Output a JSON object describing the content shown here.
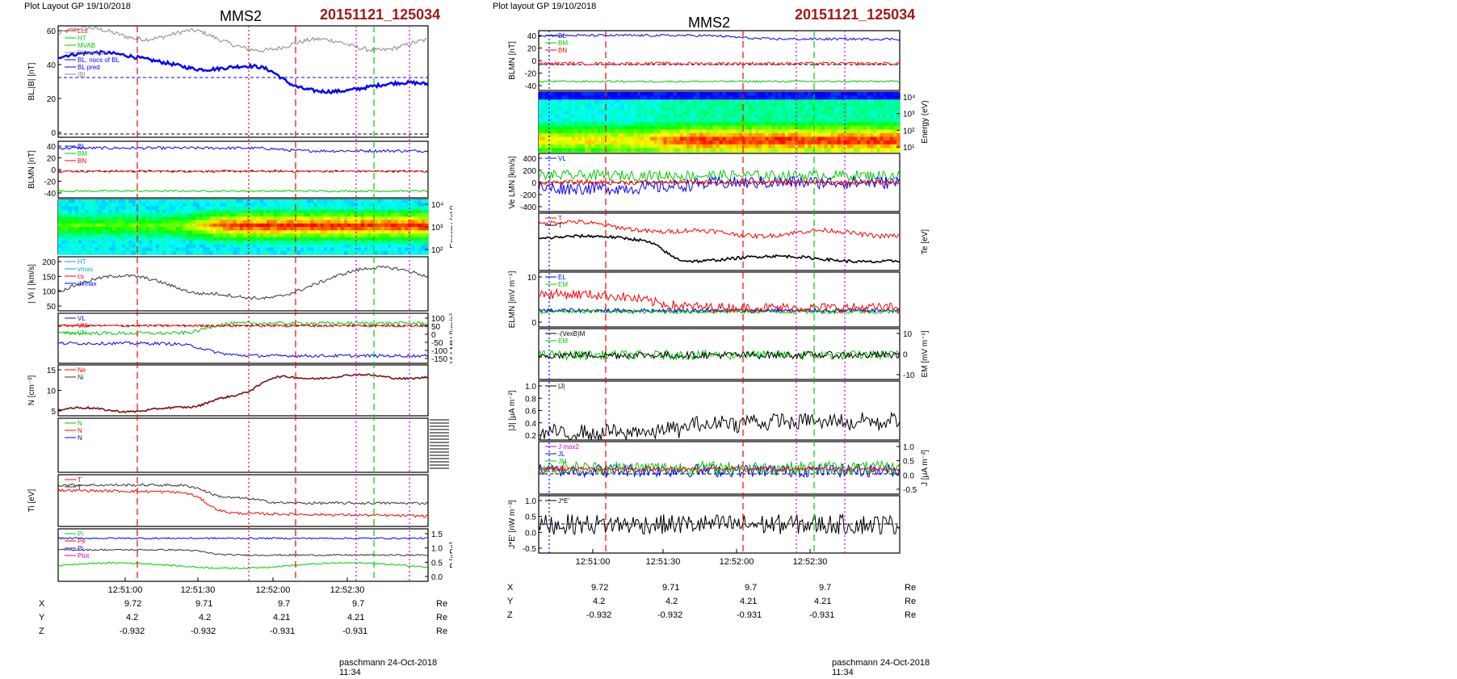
{
  "left": {
    "header": "Plot Layout GP 19/10/2018",
    "spacecraft": "MMS2",
    "event_id": "20151121_125034",
    "footer": "paschmann 24-Oct-2018 11:34"
  },
  "right": {
    "header": "Plot layout GP 19/10/2018",
    "spacecraft": "MMS2",
    "event_id": "20151121_125034",
    "footer": "paschmann 24-Oct-2018 11:34"
  },
  "colors": {
    "title_red": "#a01818",
    "blue": "#0000ff",
    "red": "#ff0000",
    "green": "#00cc00",
    "black": "#000000",
    "magenta": "#cc00cc",
    "cyan": "#00aacc",
    "gray": "#888888"
  },
  "orbit": {
    "left": {
      "rows": [
        {
          "label": "X",
          "values": [
            "9.72",
            "9.71",
            "9.7",
            "9.7"
          ],
          "unit": "Re"
        },
        {
          "label": "Y",
          "values": [
            "4.2",
            "4.2",
            "4.21",
            "4.21"
          ],
          "unit": "Re"
        },
        {
          "label": "Z",
          "values": [
            "-0.932",
            "-0.932",
            "-0.931",
            "-0.931"
          ],
          "unit": "Re"
        }
      ]
    },
    "right": {
      "rows": [
        {
          "label": "X",
          "values": [
            "9.72",
            "9.71",
            "9.7",
            "9.7"
          ],
          "unit": "Re"
        },
        {
          "label": "Y",
          "values": [
            "4.2",
            "4.2",
            "4.21",
            "4.21"
          ],
          "unit": "Re"
        },
        {
          "label": "Z",
          "values": [
            "-0.932",
            "-0.932",
            "-0.931",
            "-0.931"
          ],
          "unit": "Re"
        }
      ]
    }
  },
  "chart_data": [
    {
      "type": "line",
      "figure": "left",
      "x_ticks": [
        "12:51:00",
        "12:51:30",
        "12:52:00",
        "12:52:30"
      ],
      "event_markers": [
        {
          "color": "red",
          "style": "dashed"
        },
        {
          "color": "red",
          "style": "dotted"
        },
        {
          "color": "red",
          "style": "dashed"
        },
        {
          "color": "magenta",
          "style": "dotted"
        },
        {
          "color": "green",
          "style": "dashed"
        },
        {
          "color": "magenta",
          "style": "dotted"
        }
      ],
      "panels": [
        {
          "id": "B",
          "ylabel": "BL,|B| [nT]",
          "yticks": [
            "60",
            "40",
            "20",
            "0"
          ],
          "legend": [
            "Lcs",
            "HT",
            "MVAB",
            "BLminmax",
            "BL, nocs of BL",
            "BL pred",
            "|B|"
          ]
        },
        {
          "id": "BLMN",
          "ylabel": "BLMN [nT]",
          "yticks": [
            "40",
            "20",
            "0",
            "-20",
            "-40"
          ],
          "legend": [
            "BL",
            "BM",
            "BN"
          ]
        },
        {
          "id": "spec",
          "ylabel": "Energy (eV)",
          "yticks": [
            "10⁴",
            "10³",
            "10²"
          ],
          "type": "heatmap"
        },
        {
          "id": "Vi",
          "ylabel": "| Vi | [km/s]",
          "yticks": [
            "200",
            "150",
            "100",
            "50"
          ],
          "legend": [
            "HT",
            "vmax",
            "cs",
            "dvmax"
          ]
        },
        {
          "id": "ViLMN",
          "ylabel": "Vi LMN [km/s]",
          "yticks": [
            "100",
            "50",
            "0",
            "-50",
            "-100",
            "-150"
          ],
          "legend": [
            "VL",
            "VM",
            "VN"
          ]
        },
        {
          "id": "N",
          "ylabel": "N [cm⁻³]",
          "yticks": [
            "15",
            "10",
            "5"
          ],
          "legend": [
            "Ne",
            "Ni"
          ]
        },
        {
          "id": "Nz",
          "ylabel": "",
          "legend": [
            "N",
            "N",
            "N"
          ]
        },
        {
          "id": "Ti",
          "ylabel": "Ti [eV]",
          "yticks": [],
          "legend": [
            "T",
            "T"
          ]
        },
        {
          "id": "P",
          "ylabel": "P [nPa]",
          "yticks": [
            "1.5",
            "1.0",
            "0.5",
            "0.0"
          ],
          "legend": [
            "Pi",
            "Pe",
            "Pi",
            "Ptot"
          ]
        }
      ]
    },
    {
      "type": "line",
      "figure": "right",
      "x_ticks": [
        "12:51:00",
        "12:51:30",
        "12:52:00",
        "12:52:30"
      ],
      "panels": [
        {
          "id": "BLMN",
          "ylabel": "BLMN [nT]",
          "yticks": [
            "40",
            "20",
            "0",
            "-20",
            "-40"
          ],
          "legend": [
            "BL",
            "BM",
            "BN"
          ]
        },
        {
          "id": "spec",
          "ylabel": "Energy (eV)",
          "yticks": [
            "10⁴",
            "10³",
            "10²",
            "10¹"
          ],
          "type": "heatmap"
        },
        {
          "id": "Ve",
          "ylabel": "Ve LMN [km/s]",
          "yticks": [
            "400",
            "200",
            "0",
            "-200",
            "-400"
          ],
          "legend": [
            "VL"
          ]
        },
        {
          "id": "Te",
          "ylabel": "Te [eV]",
          "yticks": [],
          "legend": [
            "T",
            "T"
          ]
        },
        {
          "id": "E",
          "ylabel": "ELMN [mV m⁻¹]",
          "yticks": [
            "10",
            "0"
          ],
          "legend": [
            "EL",
            "EM"
          ]
        },
        {
          "id": "EM",
          "ylabel": "EM [mV m⁻¹]",
          "yticks": [
            "10",
            "0",
            "-10"
          ],
          "legend": [
            "-(VexB)M",
            "EM"
          ]
        },
        {
          "id": "J",
          "ylabel": "|J| [μA m⁻²]",
          "yticks": [
            "1.0",
            "0.8",
            "0.6",
            "0.4",
            "0.2"
          ],
          "legend": [
            "|J|"
          ]
        },
        {
          "id": "JLMN",
          "ylabel": "J [μA m⁻²]",
          "yticks": [
            "1.0",
            "0.5",
            "0.0",
            "-0.5"
          ],
          "legend": [
            "J max2",
            "JL",
            "JM",
            "JN"
          ]
        },
        {
          "id": "JE",
          "ylabel": "J*E' [nW m⁻³]",
          "yticks": [
            "1.0",
            "0.5",
            "0.0",
            "-0.5"
          ],
          "legend": [
            "J*E'"
          ]
        }
      ]
    }
  ]
}
